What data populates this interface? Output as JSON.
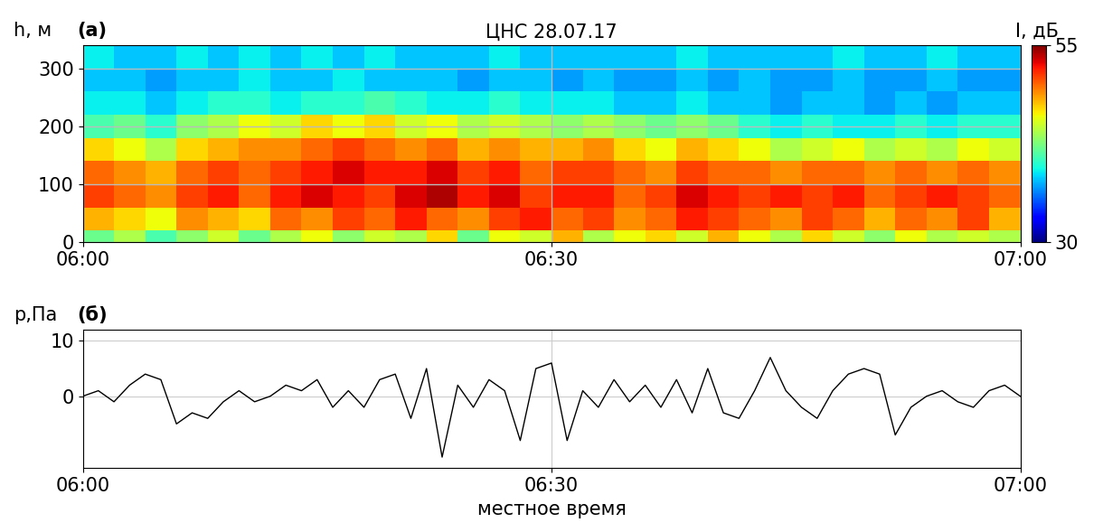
{
  "chart_data": [
    {
      "type": "heatmap",
      "title": "ЦНС 28.07.17",
      "panel_label": "(a)",
      "y_label": "h, м",
      "x_edges": [
        0,
        2,
        4,
        6,
        8,
        10,
        12,
        14,
        16,
        18,
        20,
        22,
        24,
        26,
        28,
        30,
        32,
        34,
        36,
        38,
        40,
        42,
        44,
        46,
        48,
        50,
        52,
        54,
        56,
        58,
        60
      ],
      "h_edges": [
        0,
        20,
        60,
        100,
        140,
        180,
        220,
        260,
        300,
        340
      ],
      "cells": [
        [
          42,
          44,
          41,
          43,
          45,
          42,
          44,
          46,
          43,
          45,
          44,
          47,
          42,
          46,
          45,
          48,
          44,
          46,
          47,
          45,
          48,
          46,
          44,
          47,
          45,
          43,
          46,
          44,
          45,
          44
        ],
        [
          48,
          47,
          46,
          49,
          48,
          47,
          50,
          49,
          51,
          50,
          52,
          50,
          49,
          51,
          52,
          50,
          51,
          49,
          50,
          52,
          51,
          50,
          49,
          51,
          50,
          48,
          50,
          49,
          51,
          48
        ],
        [
          51,
          50,
          49,
          51,
          52,
          50,
          52,
          53,
          52,
          51,
          53,
          54,
          52,
          53,
          51,
          52,
          52,
          50,
          51,
          53,
          52,
          51,
          52,
          51,
          52,
          50,
          51,
          52,
          51,
          50
        ],
        [
          50,
          49,
          48,
          50,
          51,
          50,
          51,
          52,
          53,
          52,
          52,
          53,
          51,
          52,
          50,
          51,
          51,
          50,
          49,
          51,
          50,
          50,
          49,
          50,
          50,
          49,
          50,
          49,
          50,
          49
        ],
        [
          47,
          46,
          44,
          47,
          48,
          49,
          49,
          50,
          51,
          50,
          49,
          50,
          48,
          49,
          48,
          48,
          49,
          47,
          46,
          48,
          47,
          46,
          44,
          45,
          46,
          44,
          45,
          44,
          46,
          45
        ],
        [
          41,
          42,
          40,
          43,
          44,
          46,
          45,
          47,
          46,
          47,
          45,
          46,
          44,
          45,
          44,
          43,
          44,
          43,
          42,
          43,
          42,
          40,
          39,
          40,
          39,
          39,
          40,
          39,
          40,
          40
        ],
        [
          39,
          39,
          38,
          39,
          40,
          40,
          39,
          40,
          40,
          41,
          40,
          39,
          39,
          40,
          39,
          39,
          39,
          38,
          38,
          39,
          38,
          38,
          37,
          38,
          38,
          37,
          38,
          37,
          38,
          38
        ],
        [
          38,
          38,
          37,
          38,
          38,
          39,
          38,
          38,
          39,
          38,
          38,
          38,
          37,
          38,
          38,
          37,
          38,
          37,
          37,
          38,
          37,
          38,
          37,
          37,
          38,
          37,
          37,
          38,
          37,
          37
        ],
        [
          39,
          38,
          38,
          39,
          38,
          39,
          38,
          39,
          38,
          39,
          38,
          38,
          38,
          39,
          38,
          38,
          38,
          38,
          38,
          39,
          38,
          38,
          38,
          38,
          39,
          38,
          38,
          39,
          38,
          38
        ]
      ],
      "xlim": [
        0,
        60
      ],
      "xticks": [
        {
          "value": 0,
          "label": "06:00"
        },
        {
          "value": 30,
          "label": "06:30"
        },
        {
          "value": 60,
          "label": "07:00"
        }
      ],
      "ylim": [
        0,
        340
      ],
      "yticks": [
        0,
        100,
        200,
        300
      ],
      "colorbar_label": "I, дБ",
      "colorbar_range": [
        30,
        55
      ],
      "colorbar_ticks": [
        30,
        55
      ],
      "grid": true
    },
    {
      "type": "line",
      "panel_label": "(б)",
      "y_label": "p,Па",
      "x_label": "местное время",
      "x": [
        0,
        1,
        2,
        3,
        4,
        5,
        6,
        7,
        8,
        9,
        10,
        11,
        12,
        13,
        14,
        15,
        16,
        17,
        18,
        19,
        20,
        21,
        22,
        23,
        24,
        25,
        26,
        27,
        28,
        29,
        30,
        31,
        32,
        33,
        34,
        35,
        36,
        37,
        38,
        39,
        40,
        41,
        42,
        43,
        44,
        45,
        46,
        47,
        48,
        49,
        50,
        51,
        52,
        53,
        54,
        55,
        56,
        57,
        58,
        59,
        60
      ],
      "values": [
        0,
        1,
        -1,
        2,
        4,
        3,
        -5,
        -3,
        -4,
        -1,
        1,
        -1,
        0,
        2,
        1,
        3,
        -2,
        1,
        -2,
        3,
        4,
        -4,
        5,
        -11,
        2,
        -2,
        3,
        1,
        -8,
        5,
        6,
        -8,
        1,
        -2,
        3,
        -1,
        2,
        -2,
        3,
        -3,
        5,
        -3,
        -4,
        1,
        7,
        1,
        -2,
        -4,
        1,
        4,
        5,
        4,
        -7,
        -2,
        0,
        1,
        -1,
        -2,
        1,
        2,
        0
      ],
      "color": "#000000",
      "xlim": [
        0,
        60
      ],
      "xticks": [
        {
          "value": 0,
          "label": "06:00"
        },
        {
          "value": 30,
          "label": "06:30"
        },
        {
          "value": 60,
          "label": "07:00"
        }
      ],
      "ylim": [
        -13,
        12
      ],
      "yticks": [
        0,
        10
      ],
      "grid": true
    }
  ]
}
